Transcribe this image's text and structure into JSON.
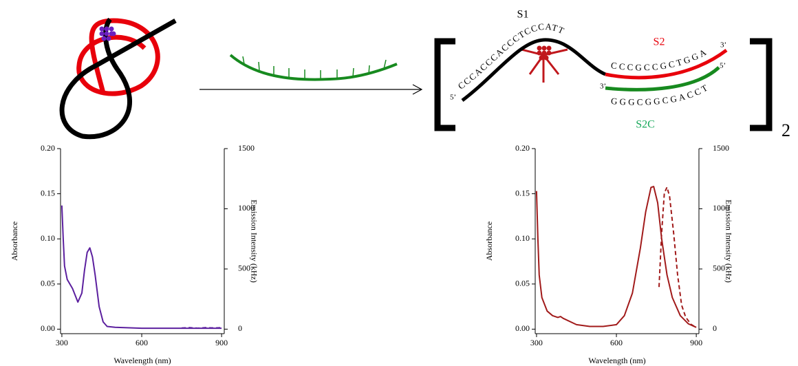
{
  "diagram": {
    "s1": "S1",
    "s2": "S2",
    "s2c": "S2C",
    "end_5_left": "5’",
    "seq_s1": "CCCACCCACCCTCCCATT",
    "seq_s2": "CCCGCCGCTGGA",
    "end_3_s2": "3’",
    "end_3_s2c": "3’",
    "seq_s2c": "GGGCGGCGACCT",
    "end_5_s2c": "5’",
    "subscript": "2"
  },
  "chart_data": [
    {
      "type": "line",
      "xlabel": "Wavelength (nm)",
      "ylabel": "Absorbance",
      "y2label": "Emission Intensity (kHz)",
      "xlim": [
        295,
        910
      ],
      "xticks": [
        300,
        600,
        900
      ],
      "ylim": [
        -0.005,
        0.2
      ],
      "yticks": [
        {
          "value": 0,
          "label": "0.00"
        },
        {
          "value": 0.05,
          "label": "0.05"
        },
        {
          "value": 0.1,
          "label": "0.10"
        },
        {
          "value": 0.15,
          "label": "0.15"
        },
        {
          "value": 0.2,
          "label": "0.20"
        }
      ],
      "y2lim": [
        -37.5,
        1500
      ],
      "y2ticks": [
        0,
        500,
        1000,
        1500
      ],
      "series": [
        {
          "name": "Absorbance",
          "color": "#5b1f9e",
          "dashed": false,
          "x": [
            300,
            305,
            310,
            320,
            340,
            360,
            375,
            385,
            395,
            405,
            415,
            425,
            440,
            455,
            470,
            500,
            600,
            700,
            800,
            900
          ],
          "values": [
            0.137,
            0.1,
            0.07,
            0.055,
            0.045,
            0.03,
            0.04,
            0.065,
            0.085,
            0.09,
            0.08,
            0.06,
            0.025,
            0.008,
            0.003,
            0.002,
            0.001,
            0.001,
            0.001,
            0.001
          ]
        },
        {
          "name": "Emission",
          "color": "#5b1f9e",
          "dashed": true,
          "axis": "y2",
          "x": [
            750,
            780,
            810,
            840,
            870,
            900
          ],
          "values": [
            10,
            12,
            8,
            12,
            10,
            12
          ]
        }
      ]
    },
    {
      "type": "line",
      "xlabel": "Wavelength (nm)",
      "ylabel": "Absorbance",
      "y2label": "Emission Intensity (kHz)",
      "xlim": [
        295,
        910
      ],
      "xticks": [
        300,
        600,
        900
      ],
      "ylim": [
        -0.005,
        0.2
      ],
      "yticks": [
        {
          "value": 0,
          "label": "0.00"
        },
        {
          "value": 0.05,
          "label": "0.05"
        },
        {
          "value": 0.1,
          "label": "0.10"
        },
        {
          "value": 0.15,
          "label": "0.15"
        },
        {
          "value": 0.2,
          "label": "0.20"
        }
      ],
      "y2lim": [
        -37.5,
        1500
      ],
      "y2ticks": [
        0,
        500,
        1000,
        1500
      ],
      "series": [
        {
          "name": "Absorbance",
          "color": "#a11a1a",
          "dashed": false,
          "x": [
            300,
            305,
            310,
            320,
            340,
            360,
            380,
            390,
            400,
            450,
            500,
            550,
            600,
            630,
            660,
            690,
            710,
            730,
            740,
            755,
            770,
            790,
            810,
            840,
            870,
            900
          ],
          "values": [
            0.153,
            0.1,
            0.06,
            0.035,
            0.02,
            0.015,
            0.013,
            0.014,
            0.012,
            0.005,
            0.003,
            0.003,
            0.005,
            0.015,
            0.04,
            0.09,
            0.13,
            0.157,
            0.158,
            0.14,
            0.1,
            0.06,
            0.035,
            0.015,
            0.006,
            0.002
          ]
        },
        {
          "name": "Emission",
          "color": "#a11a1a",
          "dashed": true,
          "axis": "y2",
          "x": [
            760,
            770,
            780,
            790,
            800,
            815,
            830,
            845,
            860,
            880,
            895
          ],
          "values": [
            350,
            800,
            1130,
            1180,
            1100,
            800,
            450,
            200,
            100,
            40,
            20
          ]
        }
      ]
    }
  ]
}
